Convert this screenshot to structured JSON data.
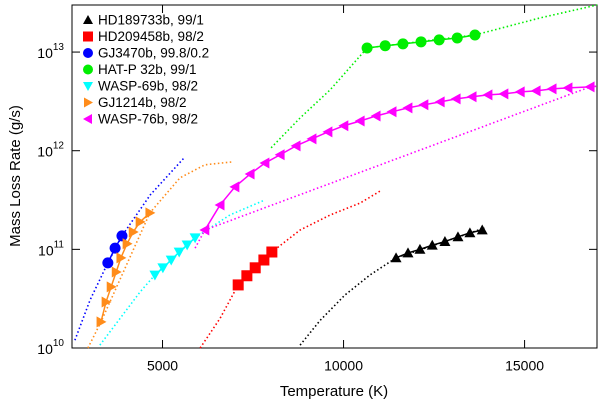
{
  "chart_data": {
    "type": "scatter",
    "x_label": "Temperature (K)",
    "y_label": "Mass Loss Rate (g/s)",
    "xlim": [
      2500,
      17000
    ],
    "ylim": [
      10000000000.0,
      30000000000000.0
    ],
    "log_y": true,
    "xticks": [
      5000,
      10000,
      15000
    ],
    "yticks": [
      {
        "value": 10000000000.0,
        "label": "10",
        "exponent": "10"
      },
      {
        "value": 100000000000.0,
        "label": "10",
        "exponent": "11"
      },
      {
        "value": 1000000000000.0,
        "label": "10",
        "exponent": "12"
      },
      {
        "value": 10000000000000.0,
        "label": "10",
        "exponent": "13"
      }
    ],
    "legend": "upper left",
    "series": [
      {
        "name": "HD189733b, 99/1",
        "color": "#000000",
        "marker": "triangle-up",
        "x": [
          11450,
          11780,
          12110,
          12450,
          12800,
          13160,
          13490,
          13830
        ],
        "values": [
          82000000000.0,
          92000000000.0,
          100000000000.0,
          110000000000.0,
          120000000000.0,
          134000000000.0,
          147000000000.0,
          157000000000.0
        ],
        "curve_x": [
          8800,
          9350,
          10040,
          10730,
          11450,
          12800,
          13900
        ],
        "curve_values": [
          10700000000.0,
          19000000000.0,
          34500000000.0,
          55000000000.0,
          82000000000.0,
          120000000000.0,
          165000000000.0
        ]
      },
      {
        "name": "HD209458b, 98/2",
        "color": "#ff0000",
        "marker": "square",
        "x": [
          7090,
          7330,
          7560,
          7800,
          8020
        ],
        "values": [
          43600000000.0,
          54000000000.0,
          65000000000.0,
          78000000000.0,
          94000000000.0
        ],
        "curve_x": [
          6040,
          6590,
          7090,
          8020,
          8800,
          9630,
          10460,
          11060
        ],
        "curve_values": [
          10000000000.0,
          20000000000.0,
          43600000000.0,
          94000000000.0,
          157000000000.0,
          223000000000.0,
          295000000000.0,
          400000000000.0
        ]
      },
      {
        "name": "GJ3470b, 99.8/0.2",
        "color": "#0000ff",
        "marker": "circle",
        "x": [
          3490,
          3690,
          3880
        ],
        "values": [
          73000000000.0,
          103000000000.0,
          137000000000.0
        ],
        "curve_x": [
          2580,
          3000,
          3490,
          3880,
          4660,
          5620
        ],
        "curve_values": [
          12000000000.0,
          30700000000.0,
          73000000000.0,
          137000000000.0,
          356000000000.0,
          865000000000.0
        ]
      },
      {
        "name": "HAT-P 32b, 99/1",
        "color": "#00ee00",
        "marker": "circle",
        "x": [
          10650,
          11150,
          11640,
          12140,
          12640,
          13140,
          13630
        ],
        "values": [
          11000000000000.0,
          11600000000000.0,
          12100000000000.0,
          12700000000000.0,
          13300000000000.0,
          13900000000000.0,
          14900000000000.0
        ],
        "curve_x": [
          8000,
          8800,
          9630,
          10650,
          13630,
          15430,
          17000
        ],
        "curve_values": [
          1070000000000.0,
          2150000000000.0,
          4140000000000.0,
          11000000000000.0,
          14900000000000.0,
          22200000000000.0,
          30000000000000.0
        ]
      },
      {
        "name": "WASP-69b, 98/2",
        "color": "#00ffff",
        "marker": "triangle-down",
        "x": [
          4790,
          5010,
          5240,
          5460,
          5680,
          5900
        ],
        "values": [
          55000000000.0,
          65000000000.0,
          78000000000.0,
          94000000000.0,
          111000000000.0,
          131000000000.0
        ],
        "curve_x": [
          3270,
          3830,
          4380,
          4790,
          5900,
          6860,
          7830
        ],
        "curve_values": [
          10700000000.0,
          20000000000.0,
          37000000000.0,
          55000000000.0,
          131000000000.0,
          223000000000.0,
          317000000000.0
        ]
      },
      {
        "name": "GJ1214b, 98/2",
        "color": "#ff8c1a",
        "marker": "triangle-right",
        "x": [
          3300,
          3440,
          3580,
          3720,
          3850,
          4020,
          4190,
          4380,
          4650
        ],
        "values": [
          18400000000.0,
          29300000000.0,
          41600000000.0,
          59000000000.0,
          82000000000.0,
          114000000000.0,
          150000000000.0,
          190000000000.0,
          234000000000.0
        ],
        "curve_x": [
          2940,
          3300,
          4650,
          5480,
          6170,
          6920
        ],
        "curve_values": [
          10000000000.0,
          18400000000.0,
          234000000000.0,
          530000000000.0,
          720000000000.0,
          770000000000.0
        ]
      },
      {
        "name": "WASP-76b, 98/2",
        "color": "#ff00ff",
        "marker": "triangle-left",
        "x": [
          6170,
          6590,
          7000,
          7420,
          7830,
          8250,
          8690,
          9130,
          9570,
          10010,
          10460,
          10900,
          11340,
          11780,
          12220,
          12670,
          13110,
          13550,
          13990,
          14430,
          14880,
          15320,
          15760,
          16200,
          16810
        ],
        "values": [
          157000000000.0,
          282000000000.0,
          430000000000.0,
          580000000000.0,
          750000000000.0,
          910000000000.0,
          1120000000000.0,
          1320000000000.0,
          1550000000000.0,
          1790000000000.0,
          2000000000000.0,
          2250000000000.0,
          2480000000000.0,
          2720000000000.0,
          2920000000000.0,
          3130000000000.0,
          3350000000000.0,
          3520000000000.0,
          3680000000000.0,
          3770000000000.0,
          3950000000000.0,
          4040000000000.0,
          4240000000000.0,
          4330000000000.0,
          4440000000000.0
        ],
        "curve_x": [
          5900,
          6170,
          16810,
          17000
        ],
        "curve_values": [
          103000000000.0,
          157000000000.0,
          4440000000000.0,
          4500000000000.0
        ]
      }
    ]
  }
}
